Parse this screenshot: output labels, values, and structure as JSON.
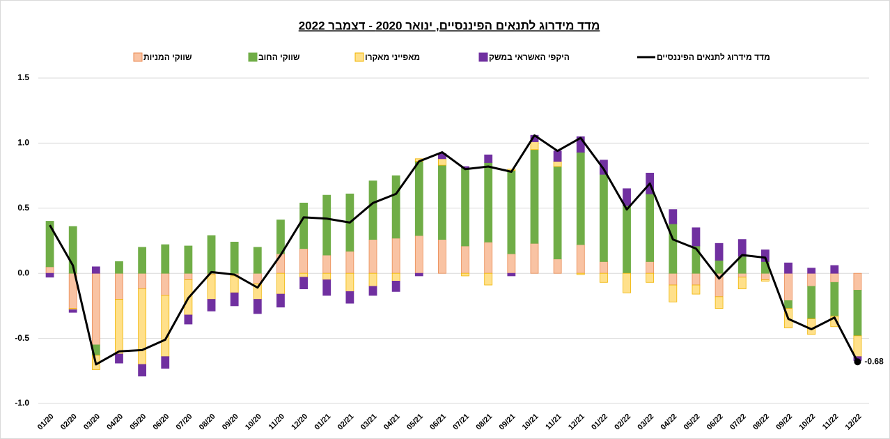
{
  "chart_data": {
    "type": "stacked-bar-line",
    "title": "מדד מידרוג לתנאים הפיננסיים, ינואר 2020 - דצמבר 2022",
    "categories": [
      "01/20",
      "02/20",
      "03/20",
      "04/20",
      "05/20",
      "06/20",
      "07/20",
      "08/20",
      "09/20",
      "10/20",
      "11/20",
      "12/20",
      "01/21",
      "02/21",
      "03/21",
      "04/21",
      "05/21",
      "06/21",
      "07/21",
      "08/21",
      "09/21",
      "10/21",
      "11/21",
      "12/21",
      "01/22",
      "02/22",
      "03/22",
      "04/22",
      "05/22",
      "06/22",
      "07/22",
      "08/22",
      "09/22",
      "10/22",
      "11/22",
      "12/22"
    ],
    "series": [
      {
        "name": "שווקי המניות",
        "type": "bar",
        "color": "#f9c3a3",
        "stroke": "#ea8a52",
        "values": [
          0.05,
          -0.27,
          -0.55,
          -0.2,
          -0.12,
          -0.17,
          -0.05,
          -0.01,
          -0.02,
          -0.08,
          0.15,
          0.19,
          0.14,
          0.17,
          0.26,
          0.27,
          0.29,
          0.26,
          0.21,
          0.24,
          0.15,
          0.23,
          0.11,
          0.22,
          0.09,
          0,
          0.09,
          -0.09,
          -0.09,
          -0.18,
          -0.03,
          -0.05,
          -0.21,
          -0.1,
          -0.07,
          -0.13
        ]
      },
      {
        "name": "שווקי החוב",
        "type": "bar",
        "color": "#70ad47",
        "stroke": "#70ad47",
        "values": [
          0.35,
          0.36,
          -0.08,
          0.09,
          0.2,
          0.22,
          0.21,
          0.29,
          0.24,
          0.2,
          0.26,
          0.35,
          0.46,
          0.44,
          0.45,
          0.48,
          0.57,
          0.57,
          0.6,
          0.61,
          0.64,
          0.72,
          0.71,
          0.71,
          0.67,
          0.52,
          0.52,
          0.38,
          0.21,
          0.1,
          0.13,
          0.09,
          -0.06,
          -0.25,
          -0.26,
          -0.35
        ]
      },
      {
        "name": "מאפייני מאקרו",
        "type": "bar",
        "color": "#ffe08a",
        "stroke": "#f0b400",
        "values": [
          0,
          -0.01,
          -0.11,
          -0.42,
          -0.58,
          -0.47,
          -0.27,
          -0.19,
          -0.13,
          -0.12,
          -0.16,
          -0.03,
          -0.05,
          -0.14,
          -0.1,
          -0.06,
          0.02,
          0.05,
          -0.02,
          -0.09,
          0.01,
          0.06,
          0.04,
          -0.01,
          -0.07,
          -0.15,
          -0.07,
          -0.13,
          -0.07,
          -0.09,
          -0.09,
          -0.01,
          -0.15,
          -0.12,
          -0.08,
          -0.16
        ]
      },
      {
        "name": "היקפי האשראי במשק",
        "type": "bar",
        "color": "#7030a0",
        "stroke": "#7030a0",
        "values": [
          -0.03,
          -0.02,
          0.05,
          -0.07,
          -0.09,
          -0.09,
          -0.07,
          -0.09,
          -0.1,
          -0.11,
          -0.1,
          -0.09,
          -0.12,
          -0.09,
          -0.07,
          -0.08,
          -0.02,
          0.04,
          0.01,
          0.06,
          -0.02,
          0.05,
          0.08,
          0.12,
          0.11,
          0.13,
          0.16,
          0.11,
          0.14,
          0.13,
          0.13,
          0.09,
          0.08,
          0.04,
          0.06,
          -0.03
        ]
      },
      {
        "name": "מדד מידרוג לתנאים הפיננסיים",
        "type": "line",
        "color": "#000000",
        "values": [
          0.37,
          0.06,
          -0.7,
          -0.6,
          -0.59,
          -0.51,
          -0.19,
          0.01,
          -0.01,
          -0.11,
          0.14,
          0.43,
          0.42,
          0.39,
          0.54,
          0.61,
          0.86,
          0.93,
          0.8,
          0.82,
          0.78,
          1.06,
          0.94,
          1.04,
          0.8,
          0.49,
          0.69,
          0.26,
          0.19,
          -0.04,
          0.14,
          0.12,
          -0.35,
          -0.43,
          -0.34,
          -0.68
        ],
        "value_labels": [
          null,
          null,
          null,
          null,
          null,
          null,
          null,
          null,
          null,
          null,
          null,
          null,
          null,
          null,
          null,
          null,
          null,
          null,
          null,
          null,
          null,
          null,
          null,
          null,
          null,
          null,
          null,
          null,
          null,
          null,
          null,
          null,
          null,
          null,
          null,
          "-0.68"
        ]
      }
    ],
    "ylim": [
      -1,
      1.5
    ],
    "yticks": [
      {
        "value": -1,
        "label": "-1.0"
      },
      -0.5,
      {
        "value": 0,
        "label": "0.0"
      },
      0.5,
      {
        "value": 1,
        "label": "1.0"
      },
      1.5
    ],
    "grid": true,
    "legend": "top"
  }
}
